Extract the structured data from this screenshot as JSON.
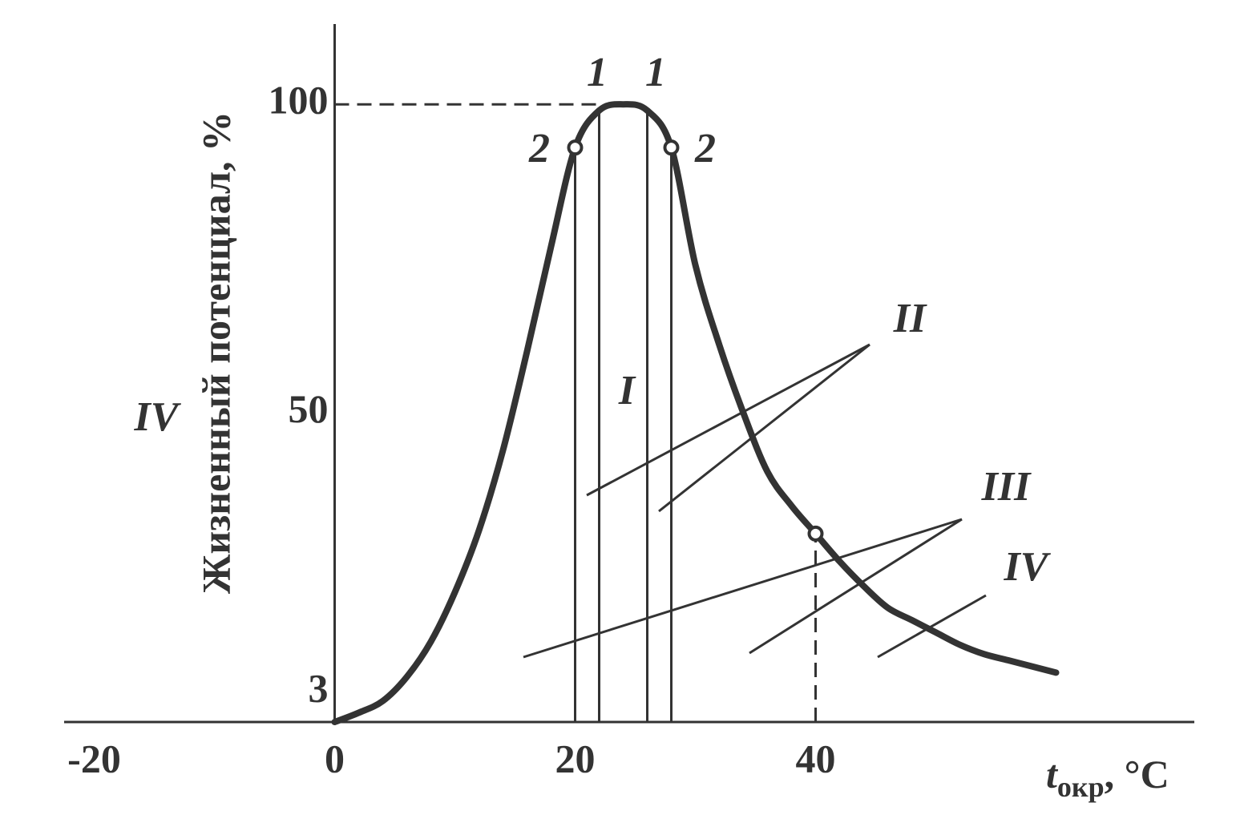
{
  "chart_data": {
    "type": "line",
    "y_label": "Жизненный потенциал, %",
    "x_label": {
      "main": "t",
      "sub": "окр",
      "rest": ", °C"
    },
    "x": [
      0,
      2,
      4,
      6,
      8,
      10,
      12,
      14,
      16,
      18,
      20,
      22,
      24,
      26,
      28,
      30,
      32,
      34,
      36,
      38,
      40,
      42,
      44,
      46,
      48,
      50,
      52,
      54,
      56,
      58,
      60
    ],
    "series": [
      {
        "color": "#333333",
        "values": [
          0,
          1.5,
          3.4,
          7.3,
          13,
          21,
          31,
          44,
          60,
          77,
          93,
          99,
          100,
          99,
          93,
          74,
          61,
          50,
          40.5,
          35,
          30.5,
          26,
          22,
          18.5,
          16.5,
          14.5,
          12.5,
          11,
          10,
          9,
          8
        ]
      }
    ],
    "xlim": [
      -22.5,
      71.5
    ],
    "ylim": [
      0,
      113
    ],
    "xticks": [
      -20,
      0,
      20,
      40
    ],
    "yticks": [
      3,
      50,
      100
    ],
    "annotations": [
      "1",
      "1",
      "2",
      "2",
      "I",
      "II",
      "III",
      "IV",
      "IV"
    ]
  }
}
